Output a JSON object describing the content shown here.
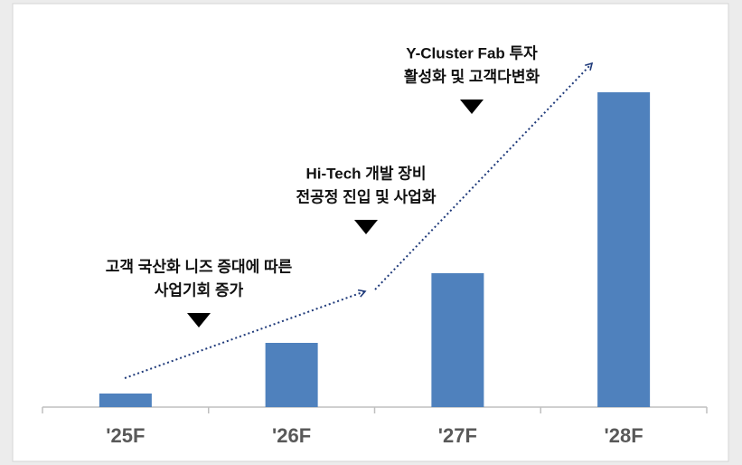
{
  "chart_data": {
    "type": "bar",
    "categories": [
      "'25F",
      "'26F",
      "'27F",
      "'28F"
    ],
    "values": [
      15,
      71,
      148,
      348
    ],
    "color": "#4f81bd",
    "ylim": [
      0,
      400
    ],
    "annotations": [
      {
        "lines": [
          "고객 국산화 니즈 증대에 따른",
          "사업기회 증가"
        ]
      },
      {
        "lines": [
          "Hi-Tech 개발 장비",
          "전공정 진입 및 사업화"
        ]
      },
      {
        "lines": [
          "Y-Cluster Fab 투자",
          "활성화 및 고객다변화"
        ]
      }
    ]
  }
}
